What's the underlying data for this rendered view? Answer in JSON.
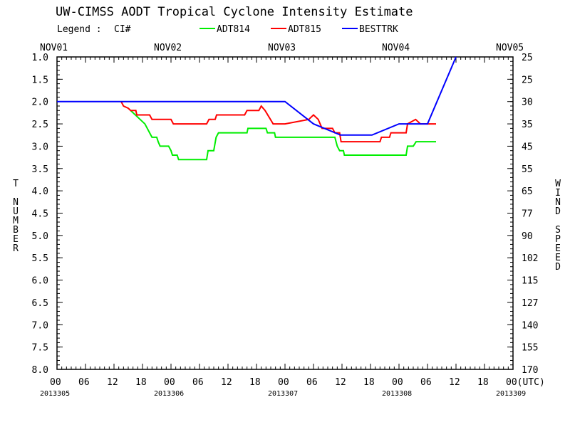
{
  "chart_data": {
    "type": "line",
    "title": "UW-CIMSS AODT Tropical Cyclone Intensity Estimate",
    "legend": {
      "label": "Legend :",
      "ci": "CI#",
      "entries": [
        {
          "name": "ADT814",
          "color": "#00ee00"
        },
        {
          "name": "ADT815",
          "color": "#ff0000"
        },
        {
          "name": "BESTTRK",
          "color": "#0000ff"
        }
      ]
    },
    "ylabel_left": "T NUMBER",
    "ylabel_right": "WIND SPEED",
    "ylim": [
      1.0,
      8.0
    ],
    "xlim_hours": [
      0,
      96
    ],
    "left_ticks": [
      "1.0",
      "1.5",
      "2.0",
      "2.5",
      "3.0",
      "3.5",
      "4.0",
      "4.5",
      "5.0",
      "5.5",
      "6.0",
      "6.5",
      "7.0",
      "7.5",
      "8.0"
    ],
    "right_ticks": [
      "25",
      "25",
      "30",
      "35",
      "45",
      "55",
      "65",
      "77",
      "90",
      "102",
      "115",
      "127",
      "140",
      "155",
      "170"
    ],
    "top_dates": [
      "NOV01",
      "NOV02",
      "NOV03",
      "NOV04",
      "NOV05"
    ],
    "x_ticks": [
      "00",
      "06",
      "12",
      "18",
      "00",
      "06",
      "12",
      "18",
      "00",
      "06",
      "12",
      "18",
      "00",
      "06",
      "12",
      "18",
      "00(UTC)"
    ],
    "julian_dates": [
      "2013305",
      "2013306",
      "2013307",
      "2013308",
      "2013309"
    ],
    "series": [
      {
        "name": "ADT814",
        "color": "#00ee00",
        "points": [
          [
            15.5,
            2.2
          ],
          [
            16.5,
            2.3
          ],
          [
            17.5,
            2.4
          ],
          [
            18.5,
            2.5
          ],
          [
            19,
            2.6
          ],
          [
            19.5,
            2.7
          ],
          [
            20,
            2.8
          ],
          [
            21,
            2.8
          ],
          [
            21.3,
            2.9
          ],
          [
            21.7,
            3.0
          ],
          [
            23.5,
            3.0
          ],
          [
            24,
            3.1
          ],
          [
            24.3,
            3.2
          ],
          [
            25.3,
            3.2
          ],
          [
            25.6,
            3.3
          ],
          [
            31.5,
            3.3
          ],
          [
            31.8,
            3.1
          ],
          [
            33,
            3.1
          ],
          [
            33.5,
            2.8
          ],
          [
            34,
            2.7
          ],
          [
            40,
            2.7
          ],
          [
            40.2,
            2.6
          ],
          [
            44,
            2.6
          ],
          [
            44.3,
            2.7
          ],
          [
            45.8,
            2.7
          ],
          [
            46,
            2.8
          ],
          [
            58.5,
            2.8
          ],
          [
            59,
            3.0
          ],
          [
            59.5,
            3.1
          ],
          [
            60.3,
            3.1
          ],
          [
            60.5,
            3.2
          ],
          [
            73.5,
            3.2
          ],
          [
            73.8,
            3.0
          ],
          [
            75,
            3.0
          ],
          [
            75.6,
            2.9
          ],
          [
            79.8,
            2.9
          ]
        ]
      },
      {
        "name": "ADT815",
        "color": "#ff0000",
        "points": [
          [
            13.5,
            2.0
          ],
          [
            14,
            2.1
          ],
          [
            15,
            2.15
          ],
          [
            15.5,
            2.2
          ],
          [
            16.6,
            2.2
          ],
          [
            16.8,
            2.3
          ],
          [
            19.5,
            2.3
          ],
          [
            20,
            2.4
          ],
          [
            24,
            2.4
          ],
          [
            24.5,
            2.5
          ],
          [
            31.5,
            2.5
          ],
          [
            32,
            2.4
          ],
          [
            33.3,
            2.4
          ],
          [
            33.6,
            2.3
          ],
          [
            39.5,
            2.3
          ],
          [
            40,
            2.2
          ],
          [
            42.5,
            2.2
          ],
          [
            43,
            2.1
          ],
          [
            43.8,
            2.2
          ],
          [
            45.5,
            2.5
          ],
          [
            48,
            2.5
          ],
          [
            53,
            2.4
          ],
          [
            54,
            2.3
          ],
          [
            55,
            2.4
          ],
          [
            55.8,
            2.6
          ],
          [
            58,
            2.6
          ],
          [
            58.5,
            2.7
          ],
          [
            59.5,
            2.7
          ],
          [
            59.8,
            2.9
          ],
          [
            68,
            2.9
          ],
          [
            68.3,
            2.8
          ],
          [
            70,
            2.8
          ],
          [
            70.3,
            2.7
          ],
          [
            73.5,
            2.7
          ],
          [
            73.8,
            2.5
          ],
          [
            75.5,
            2.4
          ],
          [
            76.5,
            2.5
          ],
          [
            79.8,
            2.5
          ]
        ]
      },
      {
        "name": "BESTTRK",
        "color": "#0000ff",
        "points": [
          [
            0,
            2.0
          ],
          [
            48,
            2.0
          ],
          [
            54,
            2.5
          ],
          [
            59.7,
            2.75
          ],
          [
            66.3,
            2.75
          ],
          [
            72,
            2.5
          ],
          [
            78,
            2.5
          ],
          [
            84,
            1.0
          ]
        ]
      }
    ]
  }
}
